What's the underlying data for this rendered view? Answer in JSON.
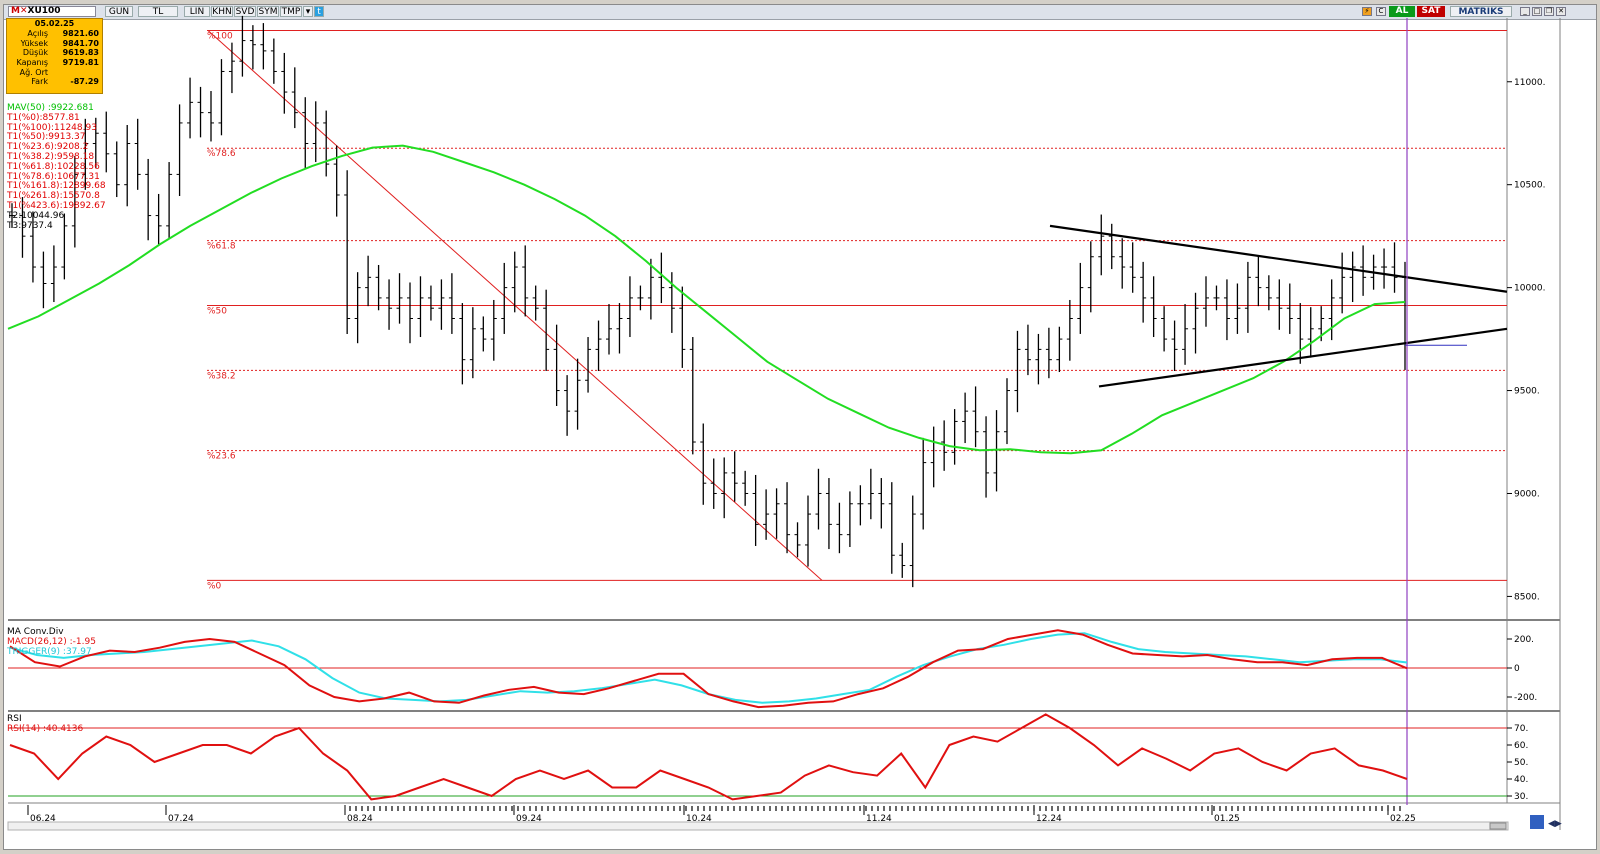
{
  "toolbar": {
    "symbol": "XU100",
    "buttons": [
      "GUN",
      "TL",
      "LIN",
      "KHN",
      "SVD",
      "SYM",
      "TMP"
    ],
    "buy_label": "AL",
    "sell_label": "SAT",
    "brand": "MATRIKS"
  },
  "infobox": {
    "date": "05.02.25",
    "rows": [
      {
        "label": "Açılış",
        "value": "9821.60"
      },
      {
        "label": "Yüksek",
        "value": "9841.70"
      },
      {
        "label": "Düşük",
        "value": "9619.83"
      },
      {
        "label": "Kapanış",
        "value": "9719.81"
      },
      {
        "label": "Ağ. Ort",
        "value": ""
      },
      {
        "label": "Fark",
        "value": "-87.29"
      }
    ]
  },
  "legend": [
    {
      "text": "MAV(50)       :9922.681",
      "color": "#00c000"
    },
    {
      "text": "T1(%0):8577.81",
      "color": "#e00000"
    },
    {
      "text": "T1(%100):11248.93",
      "color": "#e00000"
    },
    {
      "text": "T1(%50):9913.37",
      "color": "#e00000"
    },
    {
      "text": "T1(%23.6):9208.2",
      "color": "#e00000"
    },
    {
      "text": "T1(%38.2):9598.18",
      "color": "#e00000"
    },
    {
      "text": "T1(%61.8):10228.56",
      "color": "#e00000"
    },
    {
      "text": "T1(%78.6):10677.31",
      "color": "#e00000"
    },
    {
      "text": "T1(%161.8):12899.68",
      "color": "#e00000"
    },
    {
      "text": "T1(%261.8):15570.8",
      "color": "#e00000"
    },
    {
      "text": "T1(%423.6):19892.67",
      "color": "#e00000"
    },
    {
      "text": "T2:10044.96",
      "color": "#000000"
    },
    {
      "text": "T3:9737.4",
      "color": "#000000"
    }
  ],
  "colors": {
    "ma": "#22dd22",
    "fib": "#e02020",
    "macd": "#e01010",
    "trigger": "#30e0e8",
    "rsi": "#e01010",
    "cursor": "#9040c0",
    "bars": "#000000"
  },
  "chart_data": [
    {
      "type": "ohlc",
      "title": "XU100",
      "x_ticks": [
        "06.24",
        "07.24",
        "08.24",
        "09.24",
        "10.24",
        "11.24",
        "12.24",
        "01.25",
        "02.25"
      ],
      "y_ticks": [
        "11000.",
        "10500.",
        "10000.",
        "9500.",
        "9000.",
        "8500."
      ],
      "ylim": [
        8400,
        11300
      ],
      "fib_levels": [
        {
          "label": "%100",
          "value": 11248.93,
          "style": "solid"
        },
        {
          "label": "%78.6",
          "value": 10677.31,
          "style": "dotted"
        },
        {
          "label": "%61.8",
          "value": 10228.56,
          "style": "dotted"
        },
        {
          "label": "%50",
          "value": 9913.37,
          "style": "solid"
        },
        {
          "label": "%38.2",
          "value": 9598.18,
          "style": "dotted"
        },
        {
          "label": "%23.6",
          "value": 9208.2,
          "style": "dotted"
        },
        {
          "label": "%0",
          "value": 8577.81,
          "style": "solid"
        }
      ],
      "close_series": [
        [
          "06.24",
          10350
        ],
        [
          null,
          10250
        ],
        [
          null,
          10100
        ],
        [
          null,
          10020
        ],
        [
          null,
          10100
        ],
        [
          null,
          10300
        ],
        [
          null,
          10550
        ],
        [
          null,
          10700
        ],
        [
          null,
          10750
        ],
        [
          null,
          10650
        ],
        [
          null,
          10500
        ],
        [
          null,
          10700
        ],
        [
          null,
          10550
        ],
        [
          null,
          10350
        ],
        [
          null,
          10300
        ],
        [
          null,
          10550
        ],
        [
          null,
          10800
        ],
        [
          null,
          10900
        ],
        [
          null,
          10850
        ],
        [
          null,
          10800
        ],
        [
          null,
          11050
        ],
        [
          null,
          11100
        ],
        [
          null,
          11200
        ],
        [
          null,
          11180
        ],
        [
          null,
          11150
        ],
        [
          null,
          11050
        ],
        [
          null,
          10950
        ],
        [
          null,
          10850
        ],
        [
          null,
          10700
        ],
        [
          null,
          10800
        ],
        [
          null,
          10600
        ],
        [
          null,
          10450
        ],
        [
          null,
          9850
        ],
        [
          null,
          10000
        ],
        [
          null,
          10050
        ],
        [
          null,
          9950
        ],
        [
          null,
          9900
        ],
        [
          null,
          9950
        ],
        [
          null,
          9850
        ],
        [
          null,
          9950
        ],
        [
          null,
          9900
        ],
        [
          null,
          9950
        ],
        [
          null,
          9850
        ],
        [
          null,
          9650
        ],
        [
          null,
          9800
        ],
        [
          null,
          9750
        ],
        [
          null,
          9850
        ],
        [
          null,
          10000
        ],
        [
          null,
          10100
        ],
        [
          null,
          9950
        ],
        [
          null,
          9900
        ],
        [
          null,
          9700
        ],
        [
          null,
          9500
        ],
        [
          null,
          9400
        ],
        [
          null,
          9550
        ],
        [
          null,
          9700
        ],
        [
          null,
          9750
        ],
        [
          null,
          9800
        ],
        [
          null,
          9850
        ],
        [
          null,
          9950
        ],
        [
          null,
          9950
        ],
        [
          null,
          10050
        ],
        [
          null,
          10000
        ],
        [
          null,
          9900
        ],
        [
          null,
          9700
        ],
        [
          null,
          9250
        ],
        [
          null,
          9050
        ],
        [
          null,
          9000
        ],
        [
          null,
          9100
        ],
        [
          null,
          9050
        ],
        [
          null,
          9000
        ],
        [
          null,
          8850
        ],
        [
          null,
          8900
        ],
        [
          null,
          8950
        ],
        [
          null,
          8800
        ],
        [
          null,
          8750
        ],
        [
          null,
          8900
        ],
        [
          null,
          9000
        ],
        [
          null,
          8850
        ],
        [
          null,
          8800
        ],
        [
          null,
          8950
        ],
        [
          null,
          8950
        ],
        [
          null,
          9000
        ],
        [
          null,
          8950
        ],
        [
          null,
          8700
        ],
        [
          null,
          8650
        ],
        [
          null,
          8900
        ],
        [
          null,
          9150
        ],
        [
          null,
          9250
        ],
        [
          null,
          9200
        ],
        [
          null,
          9350
        ],
        [
          null,
          9400
        ],
        [
          null,
          9300
        ],
        [
          null,
          9100
        ],
        [
          null,
          9300
        ],
        [
          null,
          9500
        ],
        [
          null,
          9700
        ],
        [
          null,
          9650
        ],
        [
          null,
          9700
        ],
        [
          null,
          9650
        ],
        [
          null,
          9750
        ],
        [
          null,
          9850
        ],
        [
          null,
          10000
        ],
        [
          null,
          10150
        ],
        [
          null,
          10250
        ],
        [
          null,
          10150
        ],
        [
          null,
          10100
        ],
        [
          null,
          10050
        ],
        [
          null,
          9950
        ],
        [
          null,
          9850
        ],
        [
          null,
          9750
        ],
        [
          null,
          9700
        ],
        [
          null,
          9800
        ],
        [
          null,
          9900
        ],
        [
          null,
          9950
        ],
        [
          null,
          9950
        ],
        [
          null,
          9850
        ],
        [
          null,
          9900
        ],
        [
          null,
          10050
        ],
        [
          null,
          10000
        ],
        [
          null,
          9950
        ],
        [
          null,
          9900
        ],
        [
          null,
          9850
        ],
        [
          null,
          9750
        ],
        [
          null,
          9800
        ],
        [
          null,
          9850
        ],
        [
          null,
          9950
        ],
        [
          null,
          10050
        ],
        [
          null,
          10100
        ],
        [
          null,
          10050
        ],
        [
          null,
          10100
        ],
        [
          null,
          10100
        ],
        [
          null,
          10050
        ],
        [
          "02.25",
          9720
        ]
      ],
      "ma50_series": [
        9800,
        9860,
        9940,
        10020,
        10110,
        10210,
        10300,
        10380,
        10460,
        10530,
        10590,
        10640,
        10680,
        10690,
        10660,
        10610,
        10560,
        10500,
        10430,
        10350,
        10250,
        10130,
        10000,
        9880,
        9760,
        9640,
        9550,
        9460,
        9390,
        9320,
        9270,
        9230,
        9210,
        9215,
        9200,
        9195,
        9210,
        9290,
        9380,
        9440,
        9500,
        9560,
        9640,
        9740,
        9850,
        9920,
        9930
      ],
      "triangle_upper": {
        "x_start_label": "12.24",
        "value_start": 10300,
        "value_end": 9980
      },
      "triangle_lower": {
        "value_start": 9520,
        "value_end": 9800
      }
    },
    {
      "type": "line",
      "title": "MA Conv.Div",
      "series": [
        {
          "name": "MACD(26,12)",
          "value_label": ":-1.95"
        },
        {
          "name": "TRIGGER(9)",
          "value_label": ":37.97"
        }
      ],
      "y_ticks": [
        "200.",
        "0",
        "-200."
      ],
      "macd_values": [
        150,
        40,
        10,
        80,
        120,
        110,
        140,
        180,
        200,
        180,
        100,
        20,
        -120,
        -200,
        -230,
        -210,
        -170,
        -230,
        -240,
        -190,
        -150,
        -130,
        -170,
        -180,
        -140,
        -90,
        -40,
        -40,
        -180,
        -230,
        -270,
        -260,
        -240,
        -230,
        -180,
        -140,
        -60,
        40,
        120,
        130,
        200,
        230,
        260,
        230,
        160,
        100,
        90,
        80,
        90,
        60,
        40,
        40,
        20,
        60,
        70,
        70,
        -2
      ],
      "trigger_values": [
        140,
        90,
        70,
        90,
        100,
        110,
        130,
        150,
        170,
        190,
        150,
        60,
        -70,
        -170,
        -210,
        -220,
        -230,
        -220,
        -190,
        -160,
        -170,
        -160,
        -140,
        -110,
        -80,
        -120,
        -180,
        -220,
        -240,
        -230,
        -210,
        -180,
        -150,
        -60,
        20,
        80,
        130,
        160,
        200,
        230,
        240,
        180,
        130,
        110,
        100,
        90,
        80,
        60,
        40,
        50,
        60,
        60,
        38
      ]
    },
    {
      "type": "line",
      "title": "RSI",
      "series": [
        {
          "name": "RSI(14)",
          "value_label": ":40.4136"
        }
      ],
      "y_ticks": [
        "70.",
        "60.",
        "50.",
        "40.",
        "30."
      ],
      "levels": [
        70,
        30
      ],
      "values": [
        60,
        55,
        40,
        55,
        65,
        60,
        50,
        55,
        60,
        60,
        55,
        65,
        70,
        55,
        45,
        28,
        30,
        35,
        40,
        35,
        30,
        40,
        45,
        40,
        45,
        35,
        35,
        45,
        40,
        35,
        28,
        30,
        32,
        42,
        48,
        44,
        42,
        55,
        35,
        60,
        65,
        62,
        70,
        78,
        70,
        60,
        48,
        58,
        52,
        45,
        55,
        58,
        50,
        45,
        55,
        58,
        48,
        45,
        40
      ]
    }
  ]
}
